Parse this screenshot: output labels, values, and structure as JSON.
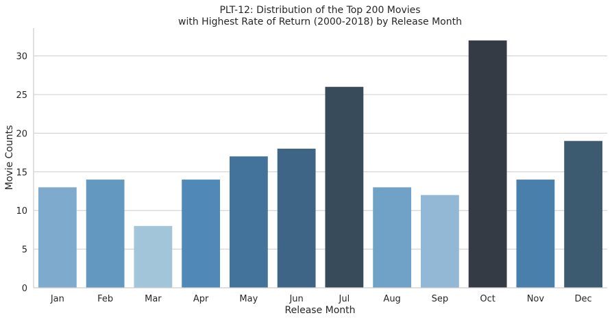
{
  "chart_data": {
    "type": "bar",
    "title_line1": "PLT-12: Distribution of the Top 200 Movies",
    "title_line2": "with Highest Rate of Return (2000-2018) by Release Month",
    "xlabel": "Release Month",
    "ylabel": "Movie Counts",
    "categories": [
      "Jan",
      "Feb",
      "Mar",
      "Apr",
      "May",
      "Jun",
      "Jul",
      "Aug",
      "Sep",
      "Oct",
      "Nov",
      "Dec"
    ],
    "values": [
      13,
      14,
      8,
      14,
      17,
      18,
      26,
      13,
      12,
      32,
      14,
      19
    ],
    "ylim": [
      0,
      33.6
    ],
    "yticks": [
      0,
      5,
      10,
      15,
      20,
      25,
      30
    ],
    "grid": "horizontal",
    "colors": [
      "#7eabcd",
      "#6399c0",
      "#a2c5da",
      "#5089b8",
      "#43739a",
      "#3e6585",
      "#374b5b",
      "#70a2c8",
      "#92b8d6",
      "#343b44",
      "#4880ab",
      "#3d5b70"
    ]
  }
}
